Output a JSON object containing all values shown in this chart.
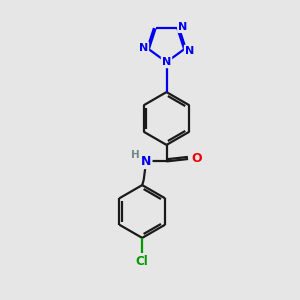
{
  "background_color": "#e6e6e6",
  "bond_color": "#1a1a1a",
  "N_color": "#0000ee",
  "O_color": "#ee0000",
  "Cl_color": "#009900",
  "H_color": "#778888",
  "bond_width": 1.6,
  "dbo": 0.07,
  "figsize": [
    3.0,
    3.0
  ],
  "dpi": 100,
  "xlim": [
    0,
    10
  ],
  "ylim": [
    0,
    10
  ]
}
